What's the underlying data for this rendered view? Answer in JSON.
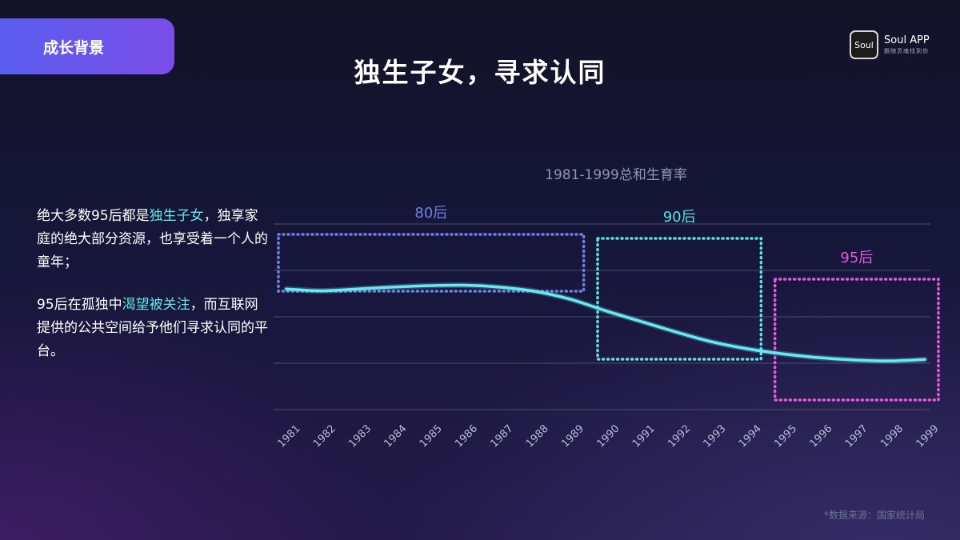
{
  "header": {
    "section_tag": "成长背景",
    "title": "独生子女，寻求认同",
    "logo": {
      "icon_text": "Soul",
      "name": "Soul APP",
      "tagline": "跟随灵魂找到你"
    }
  },
  "left_text": {
    "p1_before": "绝大多数95后都是",
    "p1_highlight": "独生子女",
    "p1_after": "，独享家庭的绝大部分资源，也享受着一个人的童年；",
    "p2_before": " 95后在孤独中",
    "p2_highlight": "渴望被关注",
    "p2_after": "，而互联网提供的公共空间给予他们寻求认同的平台。"
  },
  "source": "*数据来源：国家统计局",
  "colors": {
    "line": "#66eaf0",
    "group_80": "#6e7fdc",
    "group_90": "#5de0dc",
    "group_95": "#e25ad6",
    "grid": "#4a4e70",
    "tick": "#b8bdd4"
  },
  "chart_data": {
    "type": "line",
    "title": "1981-1999总和生育率",
    "categories": [
      "1981",
      "1982",
      "1983",
      "1984",
      "1985",
      "1986",
      "1987",
      "1988",
      "1989",
      "1990",
      "1991",
      "1992",
      "1993",
      "1994",
      "1995",
      "1996",
      "1997",
      "1998",
      "1999"
    ],
    "series": [
      {
        "values": [
          2.6,
          2.56,
          2.6,
          2.64,
          2.67,
          2.68,
          2.64,
          2.55,
          2.38,
          2.13,
          1.9,
          1.67,
          1.46,
          1.31,
          1.2,
          1.12,
          1.07,
          1.05,
          1.08
        ]
      }
    ],
    "ylim": [
      0,
      4
    ],
    "grid": true,
    "groups": [
      {
        "label": "80后",
        "from": "1981",
        "to": "1989",
        "color": "#6e7fdc"
      },
      {
        "label": "90后",
        "from": "1990",
        "to": "1994",
        "color": "#5de0dc"
      },
      {
        "label": "95后",
        "from": "1995",
        "to": "1999",
        "color": "#e25ad6"
      }
    ]
  }
}
